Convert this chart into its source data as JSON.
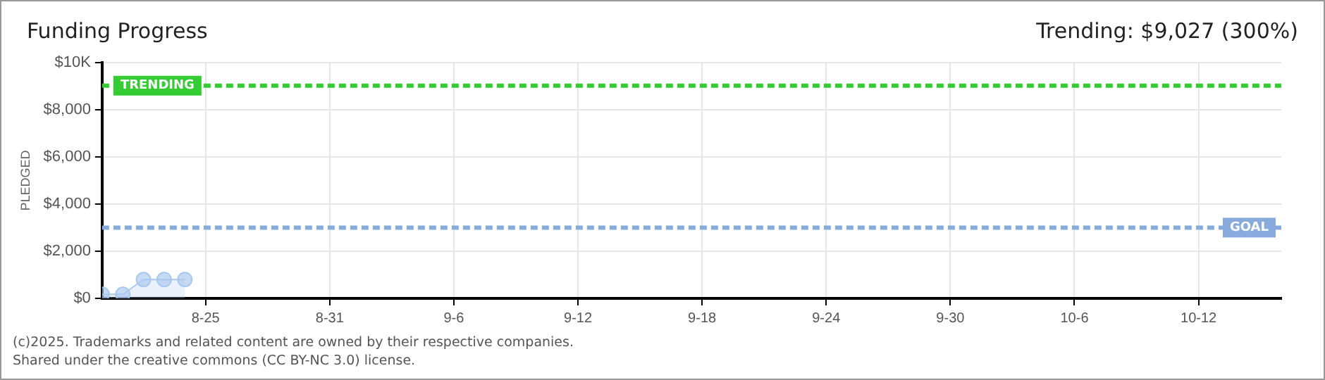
{
  "chart_data": {
    "type": "area",
    "title": "Funding Progress",
    "subtitle": "Trending: $9,027 (300%)",
    "ylabel": "PLEDGED",
    "x": [
      "2025-08-20",
      "2025-08-21",
      "2025-08-22",
      "2025-08-23",
      "2025-08-24"
    ],
    "series": [
      {
        "color": "#a9c8ee",
        "values": [
          170,
          170,
          800,
          800,
          800
        ]
      }
    ],
    "xlim": [
      "2025-08-20",
      "2025-10-16"
    ],
    "xticks": [
      {
        "value": "2025-08-25",
        "label": "8-25"
      },
      {
        "value": "2025-08-31",
        "label": "8-31"
      },
      {
        "value": "2025-09-06",
        "label": "9-6"
      },
      {
        "value": "2025-09-12",
        "label": "9-12"
      },
      {
        "value": "2025-09-18",
        "label": "9-18"
      },
      {
        "value": "2025-09-24",
        "label": "9-24"
      },
      {
        "value": "2025-09-30",
        "label": "9-30"
      },
      {
        "value": "2025-10-06",
        "label": "10-6"
      },
      {
        "value": "2025-10-12",
        "label": "10-12"
      }
    ],
    "ylim": [
      0,
      10000
    ],
    "yticks": [
      {
        "value": 0,
        "label": "$0"
      },
      {
        "value": 2000,
        "label": "$2,000"
      },
      {
        "value": 4000,
        "label": "$4,000"
      },
      {
        "value": 6000,
        "label": "$6,000"
      },
      {
        "value": 8000,
        "label": "$8,000"
      },
      {
        "value": 10000,
        "label": "$10K"
      }
    ],
    "ref_lines": [
      {
        "axis": "y",
        "value": 9027,
        "label": "TRENDING",
        "color": "#33cc33",
        "line_style": "dashed"
      },
      {
        "axis": "y",
        "value": 3000,
        "label": "GOAL",
        "color": "#88aadd",
        "line_style": "dashed"
      }
    ],
    "grid": true,
    "legend": false,
    "marker": "circle",
    "line_style": "solid",
    "annotations": [
      "(c)2025. Trademarks and related content are owned by their respective companies.",
      "Shared under the creative commons (CC BY-NC 3.0) license."
    ]
  }
}
